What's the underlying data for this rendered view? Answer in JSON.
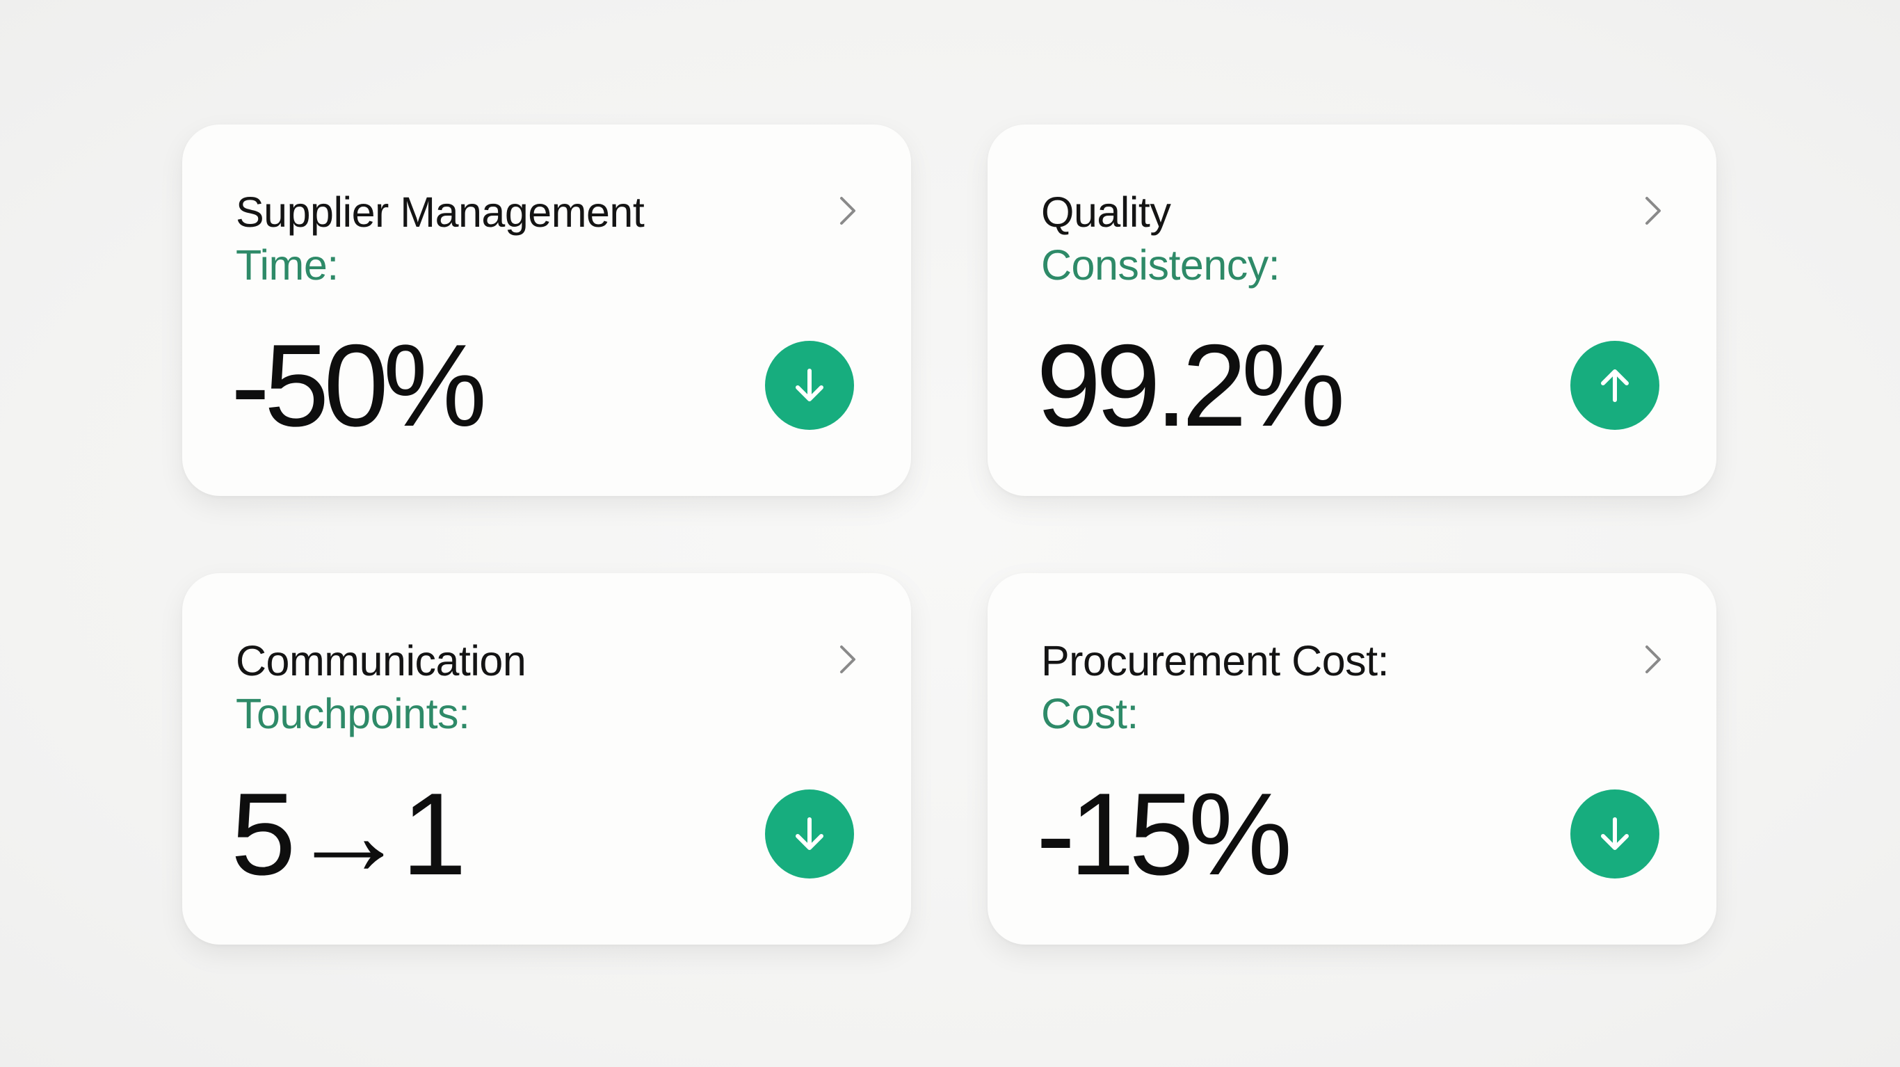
{
  "colors": {
    "background": "#f5f5f4",
    "card": "#fdfdfc",
    "accent": "#17ad7e",
    "label_green": "#2e8a68",
    "text": "#141414"
  },
  "cards": [
    {
      "title_line1": "Supplier Management",
      "title_line2": "Time:",
      "value": "-50%",
      "trend": "down",
      "trend_icon": "arrow-down-icon",
      "nav_icon": "chevron-right-icon"
    },
    {
      "title_line1": "Quality",
      "title_line2": "Consistency:",
      "value": "99.2%",
      "trend": "up",
      "trend_icon": "arrow-up-icon",
      "nav_icon": "chevron-right-icon"
    },
    {
      "title_line1": "Communication",
      "title_line2": "Touchpoints:",
      "value": "5→1",
      "trend": "down",
      "trend_icon": "arrow-down-icon",
      "nav_icon": "chevron-right-icon"
    },
    {
      "title_line1": "Procurement Cost:",
      "title_line2": "Cost:",
      "value": "-15%",
      "trend": "down",
      "trend_icon": "arrow-down-icon",
      "nav_icon": "chevron-right-icon"
    }
  ]
}
